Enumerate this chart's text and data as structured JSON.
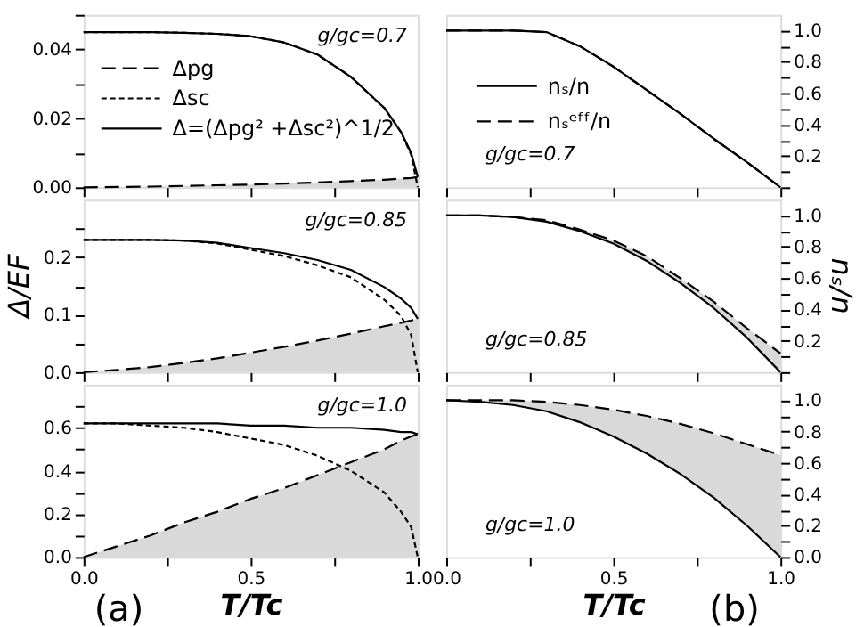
{
  "chart_data": [
    {
      "type": "line",
      "x": [
        0,
        0.1,
        0.2,
        0.3,
        0.4,
        0.5,
        0.6,
        0.7,
        0.8,
        0.9,
        0.95,
        0.98,
        1.0
      ],
      "xlim": [
        0,
        1.0
      ],
      "xticks": [
        {
          "value": 0,
          "label": null
        },
        {
          "value": 0.25,
          "label": null
        },
        {
          "value": 0.5,
          "label": null
        },
        {
          "value": 0.75,
          "label": null
        },
        {
          "value": 1,
          "label": null
        }
      ],
      "ylim": [
        0,
        0.05
      ],
      "yticks": [
        {
          "value": 0,
          "label": "0.00"
        },
        {
          "value": 0.01,
          "label": null
        },
        0.02,
        {
          "value": 0.03,
          "label": null
        },
        0.04,
        {
          "value": 0.05,
          "label": null
        }
      ],
      "tick_labels": "y",
      "legend": "top left",
      "annotations": [
        "g/gc=0.7"
      ],
      "series": [
        {
          "name": "Δpg",
          "type": "area",
          "color": "#000000",
          "line_style": "dashed",
          "values": [
            0,
            0.0001,
            0.0002,
            0.0004,
            0.0006,
            0.0008,
            0.0011,
            0.0014,
            0.0018,
            0.0022,
            0.0025,
            0.0027,
            0.003
          ]
        },
        {
          "name": "Δsc",
          "color": "#000000",
          "line_style": "dotted",
          "values": [
            0.045,
            0.045,
            0.045,
            0.0448,
            0.0445,
            0.0438,
            0.042,
            0.0385,
            0.032,
            0.023,
            0.016,
            0.0095,
            0
          ]
        },
        {
          "name": "Δ=(Δpg² +Δsc²)^1/2",
          "color": "#000000",
          "line_style": "solid",
          "values": [
            0.045,
            0.045,
            0.045,
            0.0448,
            0.0445,
            0.0438,
            0.042,
            0.0385,
            0.032,
            0.023,
            0.016,
            0.01,
            0.003
          ]
        }
      ]
    },
    {
      "type": "line",
      "x": [
        0,
        0.1,
        0.2,
        0.3,
        0.4,
        0.5,
        0.6,
        0.7,
        0.8,
        0.9,
        1.0
      ],
      "xlim": [
        0,
        1.0
      ],
      "xticks": [
        {
          "value": 0,
          "label": null
        },
        {
          "value": 0.25,
          "label": null
        },
        {
          "value": 0.5,
          "label": null
        },
        {
          "value": 0.75,
          "label": null
        },
        {
          "value": 1,
          "label": null
        }
      ],
      "ylim": [
        0,
        1.1
      ],
      "yticks": [
        {
          "value": 0,
          "label": null
        },
        {
          "value": 0.1,
          "label": null
        },
        0.2,
        {
          "value": 0.3,
          "label": null
        },
        0.4,
        {
          "value": 0.5,
          "label": null
        },
        0.6,
        {
          "value": 0.7,
          "label": null
        },
        0.8,
        {
          "value": 0.9,
          "label": null
        },
        {
          "value": 1,
          "label": "1.0"
        }
      ],
      "tick_labels": "y",
      "legend": "left",
      "annotations": [
        "g/gc=0.7"
      ],
      "series": [
        {
          "name": "nₛ/n",
          "color": "#000000",
          "line_style": "solid",
          "values": [
            1,
            1,
            1,
            0.99,
            0.9,
            0.77,
            0.62,
            0.47,
            0.31,
            0.16,
            0
          ]
        },
        {
          "name": "nₛᵉᶠᶠ/n",
          "color": "#000000",
          "line_style": "dashed",
          "values": [
            1,
            1,
            1,
            0.99,
            0.9,
            0.77,
            0.62,
            0.47,
            0.31,
            0.16,
            0
          ]
        }
      ]
    },
    {
      "type": "line",
      "x": [
        0,
        0.1,
        0.2,
        0.3,
        0.4,
        0.5,
        0.6,
        0.7,
        0.8,
        0.9,
        0.95,
        0.98,
        1.0
      ],
      "xlim": [
        0,
        1.0
      ],
      "xticks": [
        {
          "value": 0,
          "label": null
        },
        {
          "value": 0.25,
          "label": null
        },
        {
          "value": 0.5,
          "label": null
        },
        {
          "value": 0.75,
          "label": null
        },
        {
          "value": 1,
          "label": null
        }
      ],
      "ylim": [
        0,
        0.3
      ],
      "yticks": [
        {
          "value": 0,
          "label": "0.0"
        },
        {
          "value": 0.05,
          "label": null
        },
        0.1,
        {
          "value": 0.15,
          "label": null
        },
        0.2,
        {
          "value": 0.25,
          "label": null
        }
      ],
      "tick_labels": "y",
      "ylabel": "Δ/EF",
      "annotations": [
        "g/gc=0.85"
      ],
      "series": [
        {
          "type": "area",
          "color": "#000000",
          "line_style": "dashed",
          "values": [
            0,
            0.004,
            0.009,
            0.016,
            0.024,
            0.034,
            0.044,
            0.055,
            0.067,
            0.08,
            0.086,
            0.09,
            0.093
          ]
        },
        {
          "color": "#000000",
          "line_style": "dotted",
          "values": [
            0.23,
            0.23,
            0.23,
            0.229,
            0.224,
            0.213,
            0.202,
            0.186,
            0.165,
            0.126,
            0.098,
            0.065,
            0
          ]
        },
        {
          "color": "#000000",
          "line_style": "solid",
          "values": [
            0.23,
            0.23,
            0.23,
            0.229,
            0.225,
            0.216,
            0.207,
            0.195,
            0.178,
            0.148,
            0.128,
            0.112,
            0.093
          ]
        }
      ]
    },
    {
      "type": "line",
      "x": [
        0,
        0.1,
        0.2,
        0.3,
        0.4,
        0.5,
        0.6,
        0.7,
        0.8,
        0.9,
        1.0
      ],
      "xlim": [
        0,
        1.0
      ],
      "xticks": [
        {
          "value": 0,
          "label": null
        },
        {
          "value": 0.25,
          "label": null
        },
        {
          "value": 0.5,
          "label": null
        },
        {
          "value": 0.75,
          "label": null
        },
        {
          "value": 1,
          "label": null
        }
      ],
      "ylim": [
        0,
        1.1
      ],
      "yticks": [
        {
          "value": 0,
          "label": null
        },
        {
          "value": 0.1,
          "label": null
        },
        0.2,
        {
          "value": 0.3,
          "label": null
        },
        0.4,
        {
          "value": 0.5,
          "label": null
        },
        0.6,
        {
          "value": 0.7,
          "label": null
        },
        0.8,
        {
          "value": 0.9,
          "label": null
        },
        {
          "value": 1,
          "label": "1.0"
        }
      ],
      "tick_labels": "y",
      "ylabel": "nₛ/n",
      "annotations": [
        "g/gc=0.85"
      ],
      "series": [
        {
          "color": "#000000",
          "line_style": "solid",
          "values": [
            1,
            1,
            0.99,
            0.96,
            0.9,
            0.82,
            0.71,
            0.57,
            0.41,
            0.22,
            0
          ]
        },
        {
          "color": "#000000",
          "line_style": "dashed",
          "values": [
            1,
            1,
            0.99,
            0.97,
            0.91,
            0.84,
            0.74,
            0.6,
            0.45,
            0.28,
            0.12
          ],
          "lower": [
            1,
            1,
            0.99,
            0.96,
            0.9,
            0.82,
            0.71,
            0.57,
            0.41,
            0.22,
            0
          ],
          "upper": [
            1,
            1,
            0.99,
            0.97,
            0.91,
            0.84,
            0.74,
            0.6,
            0.45,
            0.28,
            0.12
          ]
        }
      ]
    },
    {
      "type": "line",
      "x": [
        0,
        0.1,
        0.2,
        0.3,
        0.4,
        0.5,
        0.6,
        0.7,
        0.8,
        0.9,
        0.95,
        0.98,
        1.0
      ],
      "xlim": [
        0,
        1.0
      ],
      "xticks": [
        {
          "value": 0,
          "label": "0.0"
        },
        {
          "value": 0.25,
          "label": null
        },
        0.5,
        {
          "value": 0.75,
          "label": null
        },
        {
          "value": 1,
          "label": "1.0"
        }
      ],
      "ylim": [
        0,
        0.8
      ],
      "yticks": [
        {
          "value": 0,
          "label": "0.0"
        },
        {
          "value": 0.1,
          "label": null
        },
        0.2,
        {
          "value": 0.3,
          "label": null
        },
        0.4,
        {
          "value": 0.5,
          "label": null
        },
        0.6,
        {
          "value": 0.7,
          "label": null
        }
      ],
      "xlabel": "T/Tc",
      "annotations": [
        "g/gc=1.0",
        "(a)"
      ],
      "series": [
        {
          "type": "area",
          "color": "#000000",
          "line_style": "dashed",
          "values": [
            0,
            0.05,
            0.1,
            0.16,
            0.21,
            0.27,
            0.32,
            0.38,
            0.44,
            0.5,
            0.54,
            0.56,
            0.57
          ]
        },
        {
          "color": "#000000",
          "line_style": "dotted",
          "values": [
            0.62,
            0.62,
            0.61,
            0.6,
            0.58,
            0.55,
            0.52,
            0.47,
            0.4,
            0.3,
            0.21,
            0.14,
            0
          ]
        },
        {
          "color": "#000000",
          "line_style": "solid",
          "values": [
            0.62,
            0.62,
            0.62,
            0.62,
            0.62,
            0.61,
            0.61,
            0.6,
            0.6,
            0.59,
            0.58,
            0.58,
            0.57
          ]
        }
      ]
    },
    {
      "type": "line",
      "x": [
        0,
        0.1,
        0.2,
        0.3,
        0.4,
        0.5,
        0.6,
        0.7,
        0.8,
        0.9,
        1.0
      ],
      "xlim": [
        0,
        1.0
      ],
      "xticks": [
        {
          "value": 0,
          "label": "0.0"
        },
        {
          "value": 0.25,
          "label": null
        },
        0.5,
        {
          "value": 0.75,
          "label": null
        },
        {
          "value": 1,
          "label": "1.0"
        }
      ],
      "ylim": [
        0,
        1.1
      ],
      "yticks": [
        {
          "value": 0,
          "label": "0.0"
        },
        {
          "value": 0.1,
          "label": null
        },
        0.2,
        {
          "value": 0.3,
          "label": null
        },
        0.4,
        {
          "value": 0.5,
          "label": null
        },
        0.6,
        {
          "value": 0.7,
          "label": null
        },
        0.8,
        {
          "value": 0.9,
          "label": null
        },
        {
          "value": 1,
          "label": "1.0"
        }
      ],
      "xlabel": "T/Tc",
      "annotations": [
        "g/gc=1.0",
        "(b)"
      ],
      "series": [
        {
          "color": "#000000",
          "line_style": "solid",
          "values": [
            1,
            0.99,
            0.97,
            0.93,
            0.86,
            0.77,
            0.66,
            0.53,
            0.38,
            0.2,
            0
          ]
        },
        {
          "color": "#000000",
          "line_style": "dashed",
          "values": [
            1,
            1,
            1,
            0.99,
            0.97,
            0.94,
            0.9,
            0.85,
            0.79,
            0.72,
            0.65
          ],
          "lower": [
            1,
            0.99,
            0.97,
            0.93,
            0.86,
            0.77,
            0.66,
            0.53,
            0.38,
            0.2,
            0
          ],
          "upper": [
            1,
            1,
            1,
            0.99,
            0.97,
            0.94,
            0.9,
            0.85,
            0.79,
            0.72,
            0.65
          ]
        }
      ]
    }
  ]
}
